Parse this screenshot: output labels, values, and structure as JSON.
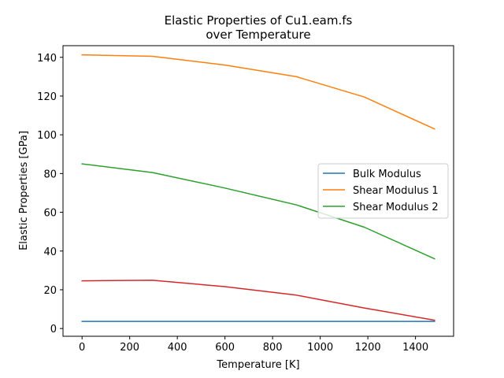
{
  "chart_data": {
    "type": "line",
    "title": "Elastic Properties of Cu1.eam.fs",
    "subtitle": "over Temperature",
    "xlabel": "Temperature [K]",
    "ylabel": "Elastic Properties [GPa]",
    "xlim": [
      -80,
      1560
    ],
    "ylim": [
      -4,
      146
    ],
    "xticks": [
      0,
      200,
      400,
      600,
      800,
      1000,
      1200,
      1400
    ],
    "yticks": [
      0,
      20,
      40,
      60,
      80,
      100,
      120,
      140
    ],
    "grid": false,
    "legend_position": "center-right",
    "x": [
      0,
      296,
      600,
      900,
      1185,
      1480
    ],
    "series": [
      {
        "name": "Bulk Modulus",
        "color": "#1f77b4",
        "in_legend": true,
        "values": [
          3.7,
          3.7,
          3.7,
          3.7,
          3.7,
          3.7
        ]
      },
      {
        "name": "Shear Modulus 1",
        "color": "#ff7f0e",
        "in_legend": true,
        "values": [
          141.3,
          140.5,
          136.0,
          130.0,
          119.5,
          103.0
        ]
      },
      {
        "name": "Shear Modulus 2",
        "color": "#2ca02c",
        "in_legend": true,
        "values": [
          85.0,
          80.5,
          72.5,
          63.8,
          52.3,
          36.0
        ]
      },
      {
        "color": "#d62728",
        "in_legend": false,
        "values": [
          24.6,
          24.9,
          21.6,
          17.2,
          10.6,
          4.3
        ]
      }
    ]
  }
}
